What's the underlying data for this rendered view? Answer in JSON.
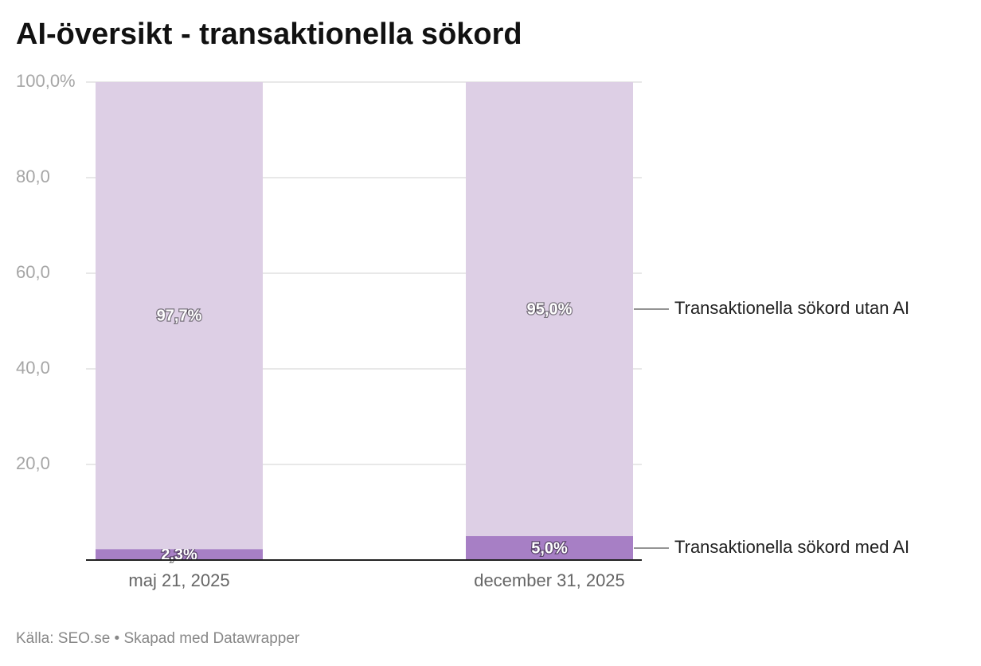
{
  "chart_data": {
    "type": "stacked_bar",
    "title": "AI-översikt - transaktionella sökord",
    "categories": [
      "maj 21, 2025",
      "december 31, 2025"
    ],
    "series": [
      {
        "name": "Transaktionella sökord med AI",
        "color": "#a77fc5",
        "values": [
          2.3,
          5.0
        ],
        "value_labels": [
          "2,3%",
          "5,0%"
        ]
      },
      {
        "name": "Transaktionella sökord utan AI",
        "color": "#ddcfe5",
        "values": [
          97.7,
          95.0
        ],
        "value_labels": [
          "97,7%",
          "95,0%"
        ]
      }
    ],
    "ylim": [
      0,
      100
    ],
    "yticks": [
      {
        "value": 20,
        "label": "20,0"
      },
      {
        "value": 40,
        "label": "40,0"
      },
      {
        "value": 60,
        "label": "60,0"
      },
      {
        "value": 80,
        "label": "80,0"
      },
      {
        "value": 100,
        "label": "100,0%"
      }
    ],
    "grid": true,
    "source": "Källa: SEO.se • Skapad med Datawrapper"
  }
}
